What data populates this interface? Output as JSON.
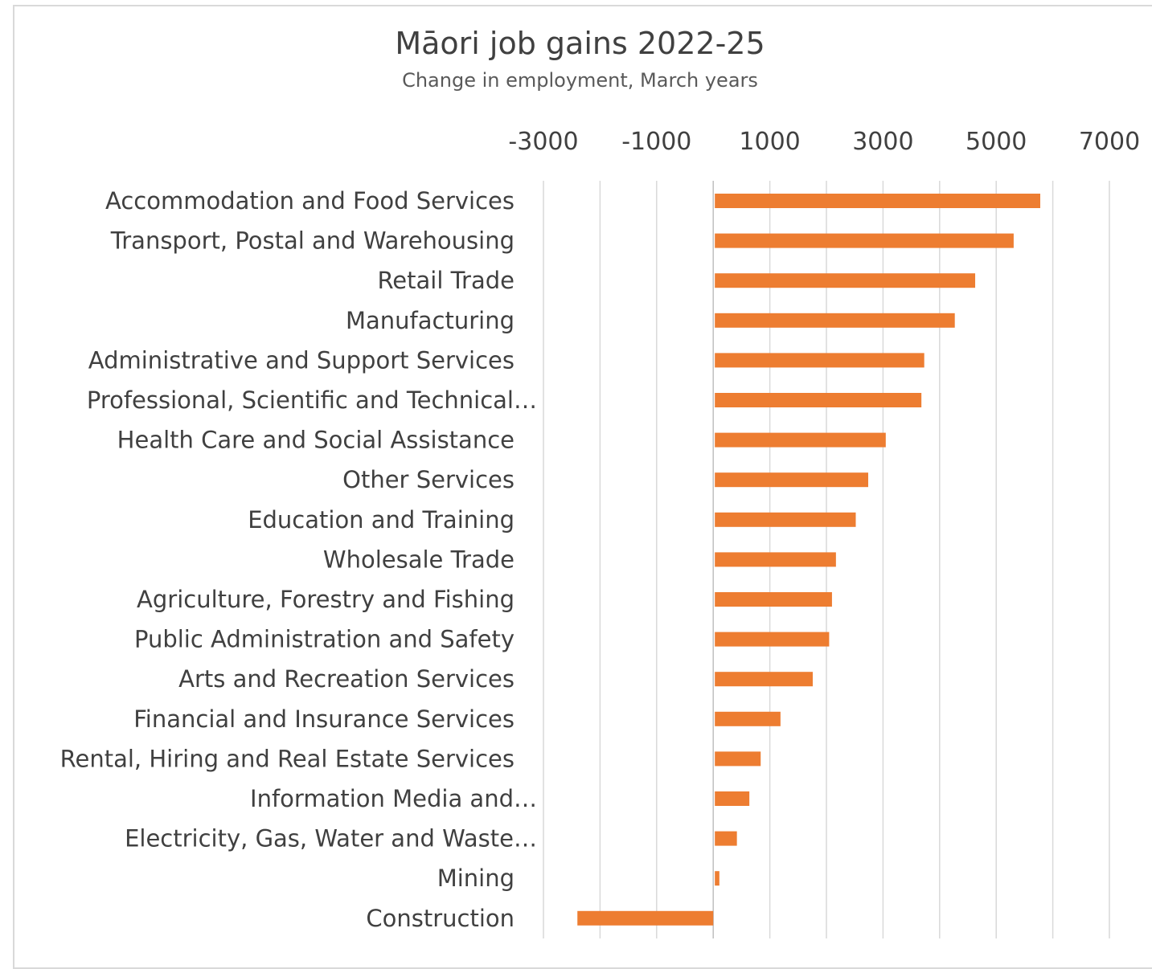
{
  "chart_data": {
    "type": "bar",
    "orientation": "horizontal",
    "title": "Māori job gains 2022-25",
    "subtitle": "Change in employment, March years",
    "xlabel": "",
    "ylabel": "",
    "xlim": [
      -3000,
      7000
    ],
    "xticks": [
      -3000,
      -1000,
      1000,
      3000,
      5000,
      7000
    ],
    "xtick_labels": [
      "-3000",
      "-1000",
      "1000",
      "3000",
      "5000",
      "7000"
    ],
    "axis_position": "top",
    "grid": true,
    "legend": "none",
    "bar_color": "#ed7d31",
    "categories": [
      "Accommodation and Food Services",
      "Transport, Postal and Warehousing",
      "Retail Trade",
      "Manufacturing",
      "Administrative and Support Services",
      "Professional, Scientific and Technical…",
      "Health Care and Social Assistance",
      "Other Services",
      "Education and Training",
      "Wholesale Trade",
      "Agriculture, Forestry and Fishing",
      "Public Administration and Safety",
      "Arts and Recreation Services",
      "Financial and Insurance Services",
      "Rental, Hiring and Real Estate Services",
      "Information Media and…",
      "Electricity, Gas, Water and Waste…",
      "Mining",
      "Construction"
    ],
    "values": [
      5750,
      5280,
      4600,
      4240,
      3700,
      3650,
      3020,
      2710,
      2490,
      2140,
      2070,
      2020,
      1730,
      1160,
      810,
      610,
      390,
      80,
      -2400
    ]
  }
}
